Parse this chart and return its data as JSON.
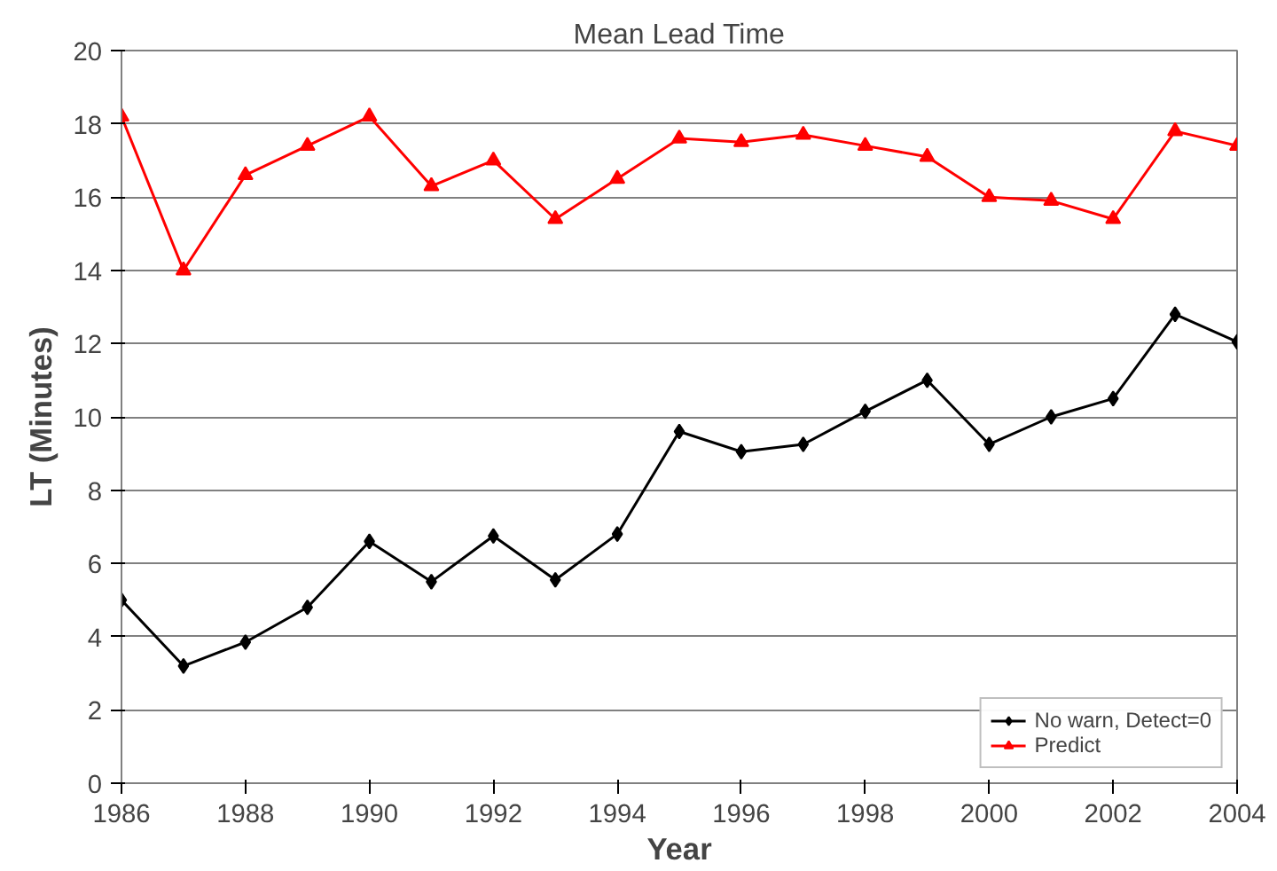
{
  "chart_data": {
    "type": "line",
    "title": "Mean Lead Time",
    "xlabel": "Year",
    "ylabel": "LT (Minutes)",
    "x": [
      1986,
      1987,
      1988,
      1989,
      1990,
      1991,
      1992,
      1993,
      1994,
      1995,
      1996,
      1997,
      1998,
      1999,
      2000,
      2001,
      2002,
      2003,
      2004
    ],
    "series": [
      {
        "name": "No warn, Detect=0",
        "color": "#000000",
        "marker": "diamond",
        "values": [
          5.0,
          3.2,
          3.85,
          4.8,
          6.6,
          5.5,
          6.75,
          5.55,
          6.8,
          9.6,
          9.05,
          9.25,
          10.15,
          11.0,
          9.25,
          10.0,
          10.5,
          12.8,
          12.05
        ]
      },
      {
        "name": "Predict",
        "color": "#ff0000",
        "marker": "triangle",
        "values": [
          18.2,
          14.0,
          16.6,
          17.4,
          18.2,
          16.3,
          17.0,
          15.4,
          16.5,
          17.6,
          17.5,
          17.7,
          17.4,
          17.1,
          16.0,
          15.9,
          15.4,
          17.8,
          17.4
        ]
      }
    ],
    "xlim": [
      1986,
      2004
    ],
    "xticks": [
      1986,
      1988,
      1990,
      1992,
      1994,
      1996,
      1998,
      2000,
      2002,
      2004
    ],
    "ylim": [
      0,
      20
    ],
    "yticks": [
      0,
      2,
      4,
      6,
      8,
      10,
      12,
      14,
      16,
      18,
      20
    ],
    "grid": "y",
    "legend": "bottom right",
    "line_style": "solid"
  }
}
